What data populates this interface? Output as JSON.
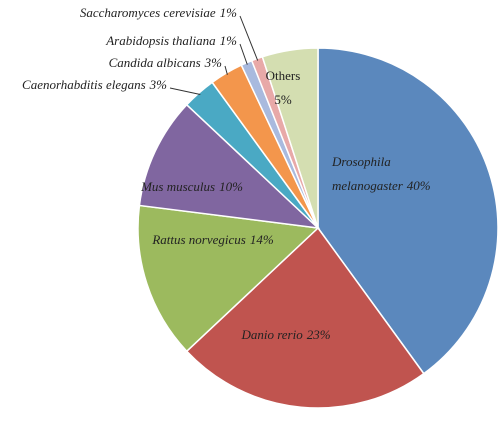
{
  "chart_data": {
    "type": "pie",
    "categories": [
      "Drosophila melanogaster",
      "Danio rerio",
      "Rattus norvegicus",
      "Mus musculus",
      "Caenorhabditis elegans",
      "Candida albicans",
      "Arabidopsis thaliana",
      "Saccharomyces cerevisiae",
      "Others"
    ],
    "values": [
      40,
      23,
      14,
      10,
      3,
      3,
      1,
      1,
      5
    ],
    "value_labels": [
      "40%",
      "23%",
      "14%",
      "10%",
      "3%",
      "3%",
      "1%",
      "1%",
      "5%"
    ],
    "colors": [
      "#5b88bd",
      "#c0544f",
      "#9cba5e",
      "#8066a0",
      "#4aa9c4",
      "#f3964c",
      "#a9bade",
      "#e8a9a8",
      "#d4deb1"
    ]
  }
}
